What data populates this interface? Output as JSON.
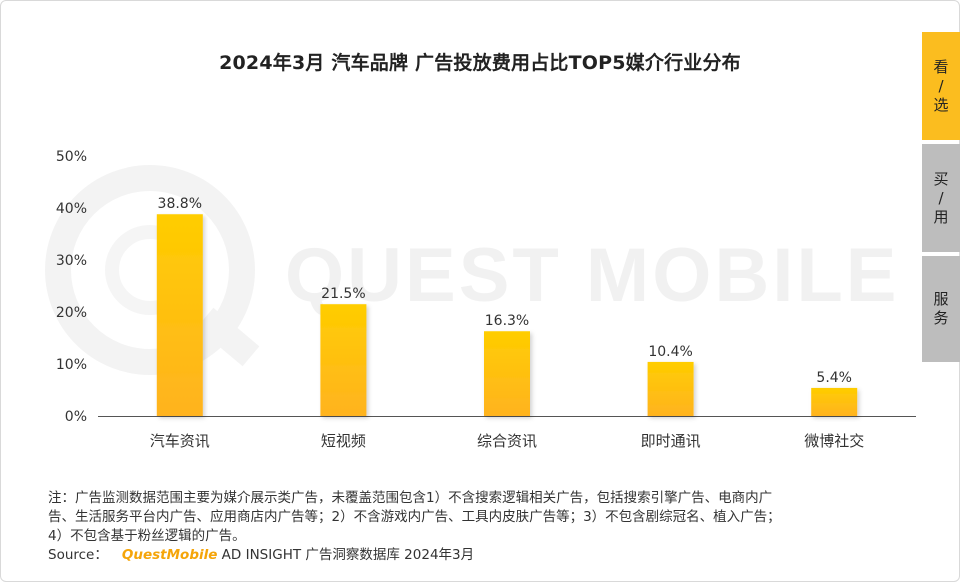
{
  "chart_data": {
    "type": "bar",
    "title": "2024年3月 汽车品牌 广告投放费用占比TOP5媒介行业分布",
    "categories": [
      "汽车资讯",
      "短视频",
      "综合资讯",
      "即时通讯",
      "微博社交"
    ],
    "values": [
      38.8,
      21.5,
      16.3,
      10.4,
      5.4
    ],
    "value_labels": [
      "38.8%",
      "21.5%",
      "16.3%",
      "10.4%",
      "5.4%"
    ],
    "y_ticks": [
      "0%",
      "10%",
      "20%",
      "30%",
      "40%",
      "50%"
    ],
    "ylim": [
      0,
      50
    ],
    "grid": false,
    "legend": "none",
    "colors": {
      "bar_top": "#ffcd00",
      "bar_bottom": "#ffb320"
    }
  },
  "watermark": "QUEST MOBILE",
  "side_nav": [
    {
      "chars": [
        "看",
        "/",
        "选"
      ],
      "active": true
    },
    {
      "chars": [
        "买",
        "/",
        "用"
      ],
      "active": false
    },
    {
      "chars": [
        "服",
        "务"
      ],
      "active": false
    }
  ],
  "notes": {
    "lines": [
      "注：广告监测数据范围主要为媒介展示类广告，未覆盖范围包含1）不含搜索逻辑相关广告，包括搜索引擎广告、电商内广",
      "告、生活服务平台内广告、应用商店内广告等；2）不含游戏内广告、工具内皮肤广告等；3）不包含剧综冠名、植入广告；",
      "4）不包含基于粉丝逻辑的广告。"
    ],
    "source_label": "Source：",
    "source_brand": "QuestMobile",
    "source_text": " AD INSIGHT 广告洞察数据库 2024年3月"
  }
}
